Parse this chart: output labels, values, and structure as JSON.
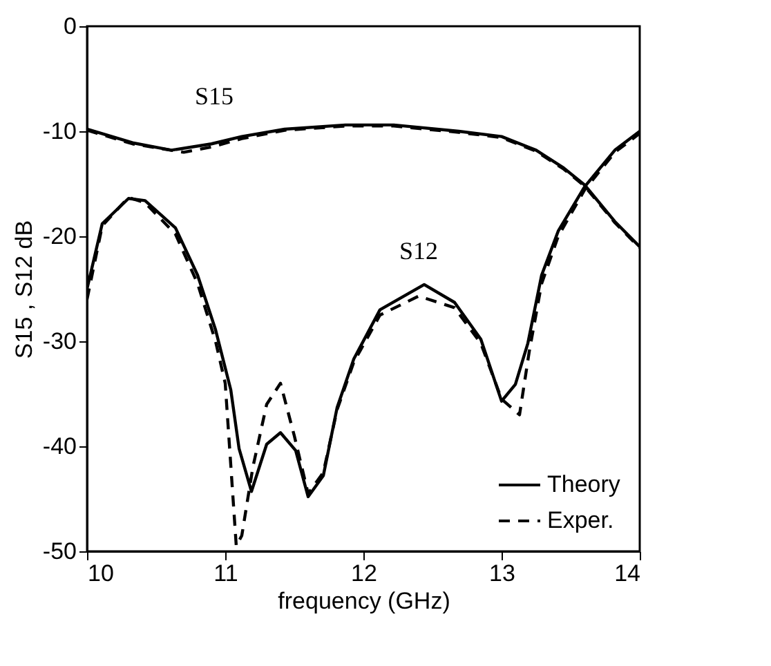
{
  "chart_data": {
    "type": "line",
    "xlabel": "frequency (GHz)",
    "ylabel": "S15 , S12 dB",
    "xlim": [
      10,
      14
    ],
    "ylim": [
      -50,
      0
    ],
    "xticks": [
      10,
      11,
      12,
      13,
      14
    ],
    "yticks": [
      -50,
      -40,
      -30,
      -20,
      -10,
      0
    ],
    "grid": false,
    "legend": "bottom right",
    "marker": "none",
    "series": [
      {
        "name": "Theory",
        "color": "#000000",
        "line_style": "solid",
        "x": [
          10,
          10.33,
          10.61,
          10.9,
          11.12,
          11.43,
          11.87,
          12.22,
          12.69,
          13.0,
          13.25,
          13.45,
          13.6,
          13.82,
          14
        ],
        "values": [
          -9.8,
          -11.1,
          -11.8,
          -11.2,
          -10.5,
          -9.8,
          -9.4,
          -9.4,
          -10,
          -10.5,
          -11.8,
          -13.5,
          -15.1,
          -18.6,
          -21
        ]
      },
      {
        "name": "Exper.",
        "color": "#000000",
        "line_style": "dashed",
        "x": [
          10,
          10.33,
          10.7,
          10.9,
          11.12,
          11.43,
          11.87,
          12.22,
          12.69,
          13.0,
          13.25,
          13.45,
          13.6,
          13.82,
          14
        ],
        "values": [
          -9.9,
          -11.2,
          -12.0,
          -11.5,
          -10.7,
          -9.9,
          -9.5,
          -9.5,
          -10.1,
          -10.6,
          -11.9,
          -13.6,
          -15.2,
          -18.7,
          -21.1
        ]
      },
      {
        "color": "#000000",
        "line_style": "solid",
        "x": [
          10,
          10.11,
          10.3,
          10.42,
          10.64,
          10.8,
          10.93,
          11.04,
          11.1,
          11.19,
          11.3,
          11.4,
          11.51,
          11.6,
          11.71,
          11.81,
          11.93,
          12.12,
          12.44,
          12.66,
          12.85,
          13.0,
          13.1,
          13.19,
          13.29,
          13.41,
          13.6,
          13.82,
          14
        ],
        "values": [
          -25,
          -18.8,
          -16.4,
          -16.6,
          -19.2,
          -23.7,
          -28.9,
          -34.6,
          -40.2,
          -44.3,
          -39.8,
          -38.7,
          -40.4,
          -44.8,
          -42.8,
          -36.3,
          -31.7,
          -27,
          -24.6,
          -26.3,
          -29.8,
          -35.7,
          -34.1,
          -30.2,
          -23.7,
          -19.5,
          -15.3,
          -11.8,
          -10
        ]
      },
      {
        "color": "#000000",
        "line_style": "dashed",
        "x": [
          10,
          10.11,
          10.3,
          10.42,
          10.64,
          10.8,
          10.93,
          11.0,
          11.08,
          11.12,
          11.2,
          11.3,
          11.4,
          11.5,
          11.6,
          11.71,
          11.81,
          11.93,
          12.12,
          12.4,
          12.66,
          12.85,
          13.0,
          13.13,
          13.2,
          13.29,
          13.41,
          13.6,
          13.82,
          14
        ],
        "values": [
          -26,
          -19,
          -16.3,
          -16.8,
          -19.8,
          -24.5,
          -30,
          -34,
          -49.5,
          -48.5,
          -42,
          -36,
          -34,
          -39,
          -44.5,
          -42.5,
          -36.5,
          -32,
          -27.5,
          -25.7,
          -26.8,
          -30.2,
          -35.5,
          -37,
          -31,
          -24.5,
          -20,
          -15.6,
          -12,
          -10.2
        ]
      }
    ],
    "annotations": [
      "S15",
      "S12"
    ]
  }
}
